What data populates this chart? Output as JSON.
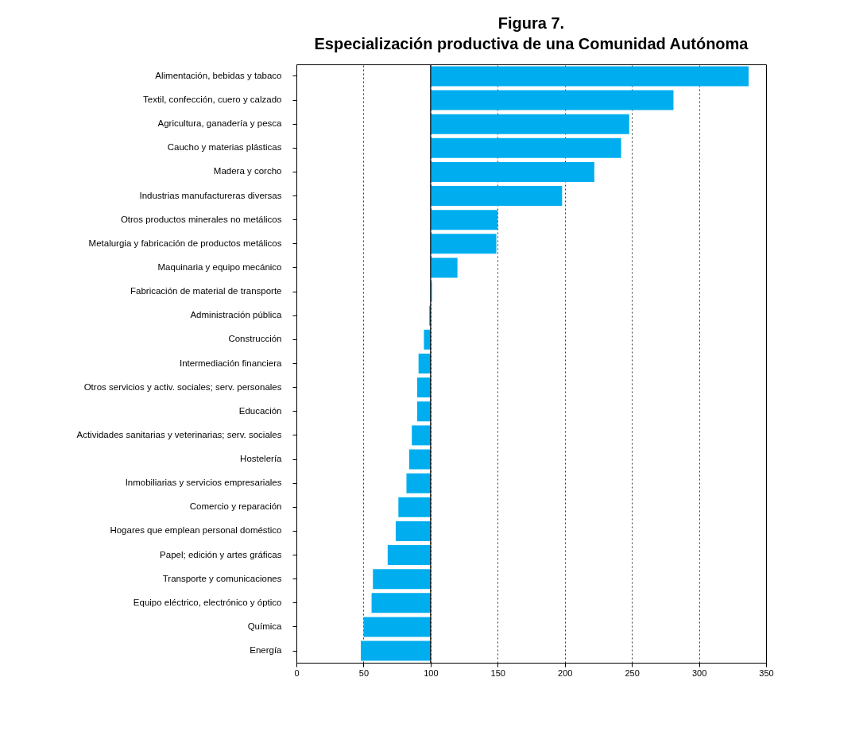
{
  "chart_data": {
    "type": "bar",
    "orientation": "horizontal",
    "title": "Figura 7.",
    "subtitle": "Especialización productiva de una Comunidad Autónoma",
    "categories": [
      "Alimentación, bebidas y tabaco",
      "Textil, confección, cuero y calzado",
      "Agricultura, ganadería y pesca",
      "Caucho y materias plásticas",
      "Madera y corcho",
      "Industrias manufactureras diversas",
      "Otros productos minerales no metálicos",
      "Metalurgia y fabricación de productos metálicos",
      "Maquinaria y equipo mecánico",
      "Fabricación de material de transporte",
      "Administración pública",
      "Construcción",
      "Intermediación financiera",
      "Otros servicios y activ. sociales; serv. personales",
      "Educación",
      "Actividades sanitarias y veterinarias; serv. sociales",
      "Hostelería",
      "Inmobiliarias y servicios empresariales",
      "Comercio y reparación",
      "Hogares que emplean personal doméstico",
      "Papel; edición y artes gráficas",
      "Transporte y comunicaciones",
      "Equipo eléctrico, electrónico y óptico",
      "Química",
      "Energía"
    ],
    "values": [
      237,
      181,
      148,
      142,
      122,
      98,
      50,
      49,
      20,
      1,
      -1,
      -5,
      -9,
      -10,
      -10,
      -14,
      -16,
      -18,
      -24,
      -26,
      -32,
      -43,
      -44,
      -50,
      -52
    ],
    "base": [
      100,
      100,
      100,
      100,
      100,
      100,
      100,
      100,
      100,
      100,
      100,
      100,
      100,
      100,
      100,
      100,
      100,
      100,
      100,
      100,
      100,
      100,
      100,
      100,
      100
    ],
    "color": "#00aeef",
    "xlim": [
      0,
      350
    ],
    "xticks": [
      0,
      50,
      100,
      150,
      200,
      250,
      300,
      350
    ],
    "grid": "x",
    "ref_lines": [
      {
        "axis": "x",
        "value": 100,
        "color": "#000000"
      }
    ]
  }
}
